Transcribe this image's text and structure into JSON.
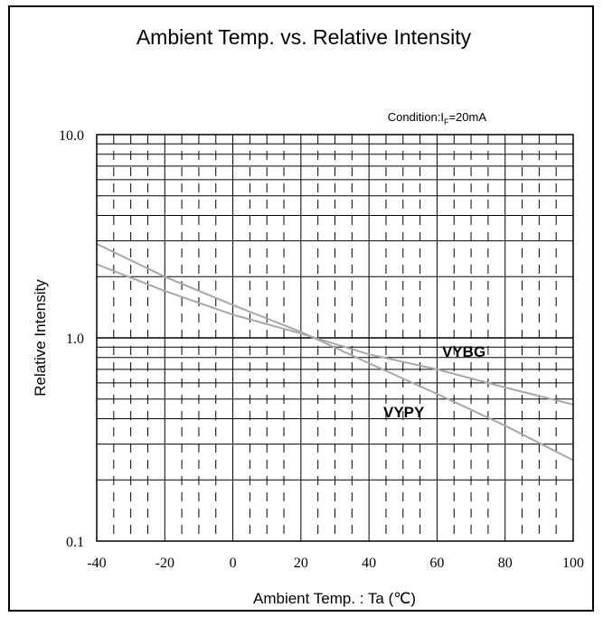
{
  "chart_data": {
    "type": "line",
    "title": "Ambient Temp. vs. Relative Intensity",
    "condition_prefix": "Condition:I",
    "condition_subscript": "F",
    "condition_suffix": "=20mA",
    "xlabel": "Ambient Temp. : Ta (℃)",
    "ylabel": "Relative Intensity",
    "x_scale": "linear",
    "y_scale": "log",
    "xlim": [
      -40,
      100
    ],
    "ylim": [
      0.1,
      10.0
    ],
    "x_ticks": [
      -40,
      -20,
      0,
      20,
      40,
      60,
      80,
      100
    ],
    "x_tick_labels": [
      "-40",
      "-20",
      "0",
      "20",
      "40",
      "60",
      "80",
      "100"
    ],
    "y_ticks": [
      0.1,
      1.0,
      10.0
    ],
    "y_tick_labels": [
      "0.1",
      "1.0",
      "10.0"
    ],
    "grid": true,
    "series": [
      {
        "name": "VYBG",
        "color": "#a8a8a8",
        "x": [
          -40,
          -20,
          0,
          20,
          40,
          60,
          80,
          100
        ],
        "y": [
          2.3,
          1.7,
          1.3,
          1.05,
          0.83,
          0.7,
          0.57,
          0.47
        ]
      },
      {
        "name": "VYPY",
        "color": "#a8a8a8",
        "x": [
          -40,
          -20,
          0,
          20,
          40,
          60,
          80,
          100
        ],
        "y": [
          2.9,
          2.0,
          1.45,
          1.07,
          0.75,
          0.53,
          0.37,
          0.25
        ]
      }
    ]
  }
}
